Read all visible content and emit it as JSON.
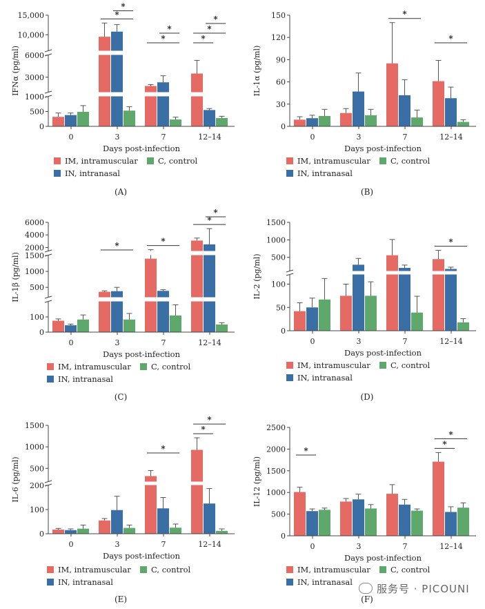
{
  "colors": {
    "IM": "#e46a63",
    "IN": "#3a6fa6",
    "C": "#5fa86b"
  },
  "legend": {
    "im": "IM, intramuscular",
    "in": "IN, intranasal",
    "c": "C, control"
  },
  "watermark": "服务号 · PICOUNI",
  "chart_data": [
    {
      "panel": "(A)",
      "type": "bar",
      "ylabel": "IFNα (pg/ml)",
      "xlabel": "Days post-infection",
      "categories": [
        "0",
        "3",
        "7",
        "12–14"
      ],
      "y_segments": [
        {
          "range": [
            0,
            1000
          ],
          "ticks": [
            0,
            500,
            1000
          ]
        },
        {
          "range": [
            1000,
            6000
          ],
          "ticks": [
            3000,
            6000
          ]
        },
        {
          "range": [
            6000,
            15000
          ],
          "ticks": [
            10000,
            15000
          ]
        }
      ],
      "series": [
        {
          "name": "IM",
          "values": [
            320,
            9500,
            1800,
            3500
          ],
          "errors": [
            130,
            3500,
            200,
            1800
          ]
        },
        {
          "name": "IN",
          "values": [
            380,
            10800,
            2300,
            550
          ],
          "errors": [
            70,
            1800,
            900,
            50
          ]
        },
        {
          "name": "C",
          "values": [
            490,
            530,
            230,
            280
          ],
          "errors": [
            210,
            130,
            80,
            60
          ]
        }
      ],
      "significance": [
        {
          "group": 1,
          "from": "IM",
          "to": "C",
          "label": "*"
        },
        {
          "group": 1,
          "from": "IN",
          "to": "C",
          "label": "*"
        },
        {
          "group": 2,
          "from": "IM",
          "to": "C",
          "label": "*"
        },
        {
          "group": 2,
          "from": "IN",
          "to": "C",
          "label": "*"
        },
        {
          "group": 3,
          "from": "IM",
          "to": "IN",
          "label": "*"
        },
        {
          "group": 3,
          "from": "IM",
          "to": "C",
          "label": "*"
        },
        {
          "group": 3,
          "from": "IN",
          "to": "C",
          "label": "*"
        }
      ]
    },
    {
      "panel": "(B)",
      "type": "bar",
      "ylabel": "IL-1α (pg/ml)",
      "xlabel": "Days post-infection",
      "categories": [
        "0",
        "3",
        "7",
        "12–14"
      ],
      "y_segments": [
        {
          "range": [
            0,
            150
          ],
          "ticks": [
            0,
            30,
            60,
            90,
            120,
            150
          ]
        }
      ],
      "series": [
        {
          "name": "IM",
          "values": [
            9,
            18,
            85,
            61
          ],
          "errors": [
            4,
            6,
            55,
            28
          ]
        },
        {
          "name": "IN",
          "values": [
            11,
            47,
            42,
            38
          ],
          "errors": [
            4,
            25,
            21,
            15
          ]
        },
        {
          "name": "C",
          "values": [
            14,
            15,
            12,
            6
          ],
          "errors": [
            9,
            8,
            10,
            3
          ]
        }
      ],
      "significance": [
        {
          "group": 2,
          "from": "IM",
          "to": "C",
          "label": "*"
        },
        {
          "group": 3,
          "from": "IM",
          "to": "C",
          "label": "*"
        }
      ]
    },
    {
      "panel": "(C)",
      "type": "bar",
      "ylabel": "IL-1β (pg/ml)",
      "xlabel": "Days post-infection",
      "categories": [
        "0",
        "3",
        "7",
        "12–14"
      ],
      "y_segments": [
        {
          "range": [
            0,
            200
          ],
          "ticks": [
            0,
            100
          ]
        },
        {
          "range": [
            200,
            1500
          ],
          "ticks": [
            500,
            1000,
            1500
          ]
        },
        {
          "range": [
            1500,
            6000
          ],
          "ticks": [
            2000,
            4000,
            6000
          ]
        }
      ],
      "series": [
        {
          "name": "IM",
          "values": [
            75,
            360,
            1400,
            3100
          ],
          "errors": [
            12,
            30,
            250,
            400
          ]
        },
        {
          "name": "IN",
          "values": [
            45,
            380,
            390,
            2500
          ],
          "errors": [
            8,
            120,
            40,
            2500
          ]
        },
        {
          "name": "C",
          "values": [
            83,
            83,
            110,
            50
          ],
          "errors": [
            30,
            40,
            70,
            12
          ]
        }
      ],
      "significance": [
        {
          "group": 1,
          "from": "IM",
          "to": "C",
          "label": "*"
        },
        {
          "group": 2,
          "from": "IM",
          "to": "C",
          "label": "*"
        },
        {
          "group": 3,
          "from": "IM",
          "to": "C",
          "label": "*"
        },
        {
          "group": 3,
          "from": "IN",
          "to": "C",
          "label": "*"
        }
      ]
    },
    {
      "panel": "(D)",
      "type": "bar",
      "ylabel": "IL-2 (pg/ml)",
      "xlabel": "Days post-infection",
      "categories": [
        "0",
        "3",
        "7",
        "12–14"
      ],
      "y_segments": [
        {
          "range": [
            0,
            120
          ],
          "ticks": [
            0,
            50,
            100
          ]
        },
        {
          "range": [
            120,
            1500
          ],
          "ticks": [
            500,
            1000,
            1500
          ]
        }
      ],
      "series": [
        {
          "name": "IM",
          "values": [
            42,
            75,
            560,
            450
          ],
          "errors": [
            18,
            25,
            450,
            250
          ]
        },
        {
          "name": "IN",
          "values": [
            50,
            290,
            200,
            170
          ],
          "errors": [
            20,
            180,
            80,
            50
          ]
        },
        {
          "name": "C",
          "values": [
            67,
            75,
            39,
            18
          ],
          "errors": [
            45,
            30,
            35,
            8
          ]
        }
      ],
      "significance": [
        {
          "group": 3,
          "from": "IM",
          "to": "C",
          "label": "*"
        }
      ]
    },
    {
      "panel": "(E)",
      "type": "bar",
      "ylabel": "IL-6 (pg/ml)",
      "xlabel": "Days post-infection",
      "categories": [
        "0",
        "3",
        "7",
        "12–14"
      ],
      "y_segments": [
        {
          "range": [
            0,
            200
          ],
          "ticks": [
            0,
            100,
            200
          ]
        },
        {
          "range": [
            200,
            1500
          ],
          "ticks": [
            500,
            1000,
            1500
          ]
        }
      ],
      "series": [
        {
          "name": "IM",
          "values": [
            17,
            55,
            320,
            930
          ],
          "errors": [
            5,
            8,
            130,
            280
          ]
        },
        {
          "name": "IN",
          "values": [
            15,
            98,
            105,
            125
          ],
          "errors": [
            5,
            57,
            45,
            62
          ]
        },
        {
          "name": "C",
          "values": [
            21,
            24,
            25,
            12
          ],
          "errors": [
            15,
            12,
            15,
            8
          ]
        }
      ],
      "significance": [
        {
          "group": 2,
          "from": "IM",
          "to": "C",
          "label": "*"
        },
        {
          "group": 3,
          "from": "IM",
          "to": "IN",
          "label": "*"
        },
        {
          "group": 3,
          "from": "IM",
          "to": "C",
          "label": "*"
        }
      ]
    },
    {
      "panel": "(F)",
      "type": "bar",
      "ylabel": "IL-12 (pg/ml)",
      "xlabel": "Days post-infection",
      "categories": [
        "0",
        "3",
        "7",
        "12–14"
      ],
      "y_segments": [
        {
          "range": [
            0,
            2500
          ],
          "ticks": [
            0,
            500,
            1000,
            1500,
            2000,
            2500
          ]
        }
      ],
      "series": [
        {
          "name": "IM",
          "values": [
            1010,
            790,
            970,
            1710
          ],
          "errors": [
            110,
            70,
            210,
            210
          ]
        },
        {
          "name": "IN",
          "values": [
            570,
            840,
            720,
            550
          ],
          "errors": [
            50,
            120,
            120,
            120
          ]
        },
        {
          "name": "C",
          "values": [
            600,
            630,
            580,
            650
          ],
          "errors": [
            40,
            90,
            40,
            110
          ]
        }
      ],
      "significance": [
        {
          "group": 0,
          "from": "IM",
          "to": "IN",
          "label": "*"
        },
        {
          "group": 3,
          "from": "IM",
          "to": "IN",
          "label": "*"
        },
        {
          "group": 3,
          "from": "IM",
          "to": "C",
          "label": "*"
        }
      ]
    }
  ]
}
